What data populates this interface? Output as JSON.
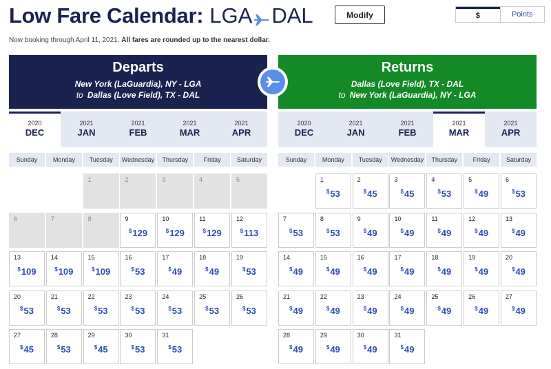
{
  "header": {
    "title": "Low Fare Calendar:",
    "origin": "LGA",
    "destination": "DAL",
    "modify_label": "Modify",
    "plane_icon": "plane-icon"
  },
  "fare_toggle": {
    "dollars_label": "$",
    "points_label": "Points",
    "selected": "$"
  },
  "note": {
    "prefix": "Now booking through April 11, 2021. ",
    "bold": "All fares are rounded up to the nearest dollar."
  },
  "colors": {
    "navy": "#1a2350",
    "green": "#138a26",
    "fare_blue": "#2d4db3",
    "swap_blue": "#5b8ee6"
  },
  "currency_symbol": "$",
  "weekdays": [
    "Sunday",
    "Monday",
    "Tuesday",
    "Wednesday",
    "Thursday",
    "Friday",
    "Saturday"
  ],
  "departs": {
    "title": "Departs",
    "from": "New York (LaGuardia), NY - LGA",
    "to_word": "to",
    "to": "Dallas (Love Field), TX - DAL",
    "months": [
      {
        "year": "2020",
        "month": "DEC",
        "active": true
      },
      {
        "year": "2021",
        "month": "JAN",
        "active": false
      },
      {
        "year": "2021",
        "month": "FEB",
        "active": false
      },
      {
        "year": "2021",
        "month": "MAR",
        "active": false
      },
      {
        "year": "2021",
        "month": "APR",
        "active": false
      }
    ],
    "leading_blanks": 2,
    "days": [
      {
        "day": 1,
        "fare": null
      },
      {
        "day": 2,
        "fare": null
      },
      {
        "day": 3,
        "fare": null
      },
      {
        "day": 4,
        "fare": null
      },
      {
        "day": 5,
        "fare": null
      },
      {
        "day": 6,
        "fare": null
      },
      {
        "day": 7,
        "fare": null
      },
      {
        "day": 8,
        "fare": null
      },
      {
        "day": 9,
        "fare": 129
      },
      {
        "day": 10,
        "fare": 129
      },
      {
        "day": 11,
        "fare": 129
      },
      {
        "day": 12,
        "fare": 113
      },
      {
        "day": 13,
        "fare": 109
      },
      {
        "day": 14,
        "fare": 109
      },
      {
        "day": 15,
        "fare": 109
      },
      {
        "day": 16,
        "fare": 53
      },
      {
        "day": 17,
        "fare": 49
      },
      {
        "day": 18,
        "fare": 49
      },
      {
        "day": 19,
        "fare": 53
      },
      {
        "day": 20,
        "fare": 53
      },
      {
        "day": 21,
        "fare": 53
      },
      {
        "day": 22,
        "fare": 53
      },
      {
        "day": 23,
        "fare": 53
      },
      {
        "day": 24,
        "fare": 53
      },
      {
        "day": 25,
        "fare": 53
      },
      {
        "day": 26,
        "fare": 53
      },
      {
        "day": 27,
        "fare": 45
      },
      {
        "day": 28,
        "fare": 53
      },
      {
        "day": 29,
        "fare": 45
      },
      {
        "day": 30,
        "fare": 53
      },
      {
        "day": 31,
        "fare": 53
      }
    ]
  },
  "returns": {
    "title": "Returns",
    "from": "Dallas (Love Field), TX - DAL",
    "to_word": "to",
    "to": "New York (LaGuardia), NY - LGA",
    "months": [
      {
        "year": "2020",
        "month": "DEC",
        "active": false
      },
      {
        "year": "2021",
        "month": "JAN",
        "active": false
      },
      {
        "year": "2021",
        "month": "FEB",
        "active": false
      },
      {
        "year": "2021",
        "month": "MAR",
        "active": true
      },
      {
        "year": "2021",
        "month": "APR",
        "active": false
      }
    ],
    "leading_blanks": 1,
    "days": [
      {
        "day": 1,
        "fare": 53
      },
      {
        "day": 2,
        "fare": 45
      },
      {
        "day": 3,
        "fare": 45
      },
      {
        "day": 4,
        "fare": 53
      },
      {
        "day": 5,
        "fare": 49
      },
      {
        "day": 6,
        "fare": 53
      },
      {
        "day": 7,
        "fare": 53
      },
      {
        "day": 8,
        "fare": 53
      },
      {
        "day": 9,
        "fare": 49
      },
      {
        "day": 10,
        "fare": 49
      },
      {
        "day": 11,
        "fare": 49
      },
      {
        "day": 12,
        "fare": 49
      },
      {
        "day": 13,
        "fare": 49
      },
      {
        "day": 14,
        "fare": 49
      },
      {
        "day": 15,
        "fare": 49
      },
      {
        "day": 16,
        "fare": 49
      },
      {
        "day": 17,
        "fare": 49
      },
      {
        "day": 18,
        "fare": 49
      },
      {
        "day": 19,
        "fare": 49
      },
      {
        "day": 20,
        "fare": 49
      },
      {
        "day": 21,
        "fare": 49
      },
      {
        "day": 22,
        "fare": 49
      },
      {
        "day": 23,
        "fare": 49
      },
      {
        "day": 24,
        "fare": 49
      },
      {
        "day": 25,
        "fare": 49
      },
      {
        "day": 26,
        "fare": 49
      },
      {
        "day": 27,
        "fare": 49
      },
      {
        "day": 28,
        "fare": 49
      },
      {
        "day": 29,
        "fare": 49
      },
      {
        "day": 30,
        "fare": 49
      },
      {
        "day": 31,
        "fare": 49
      }
    ]
  }
}
